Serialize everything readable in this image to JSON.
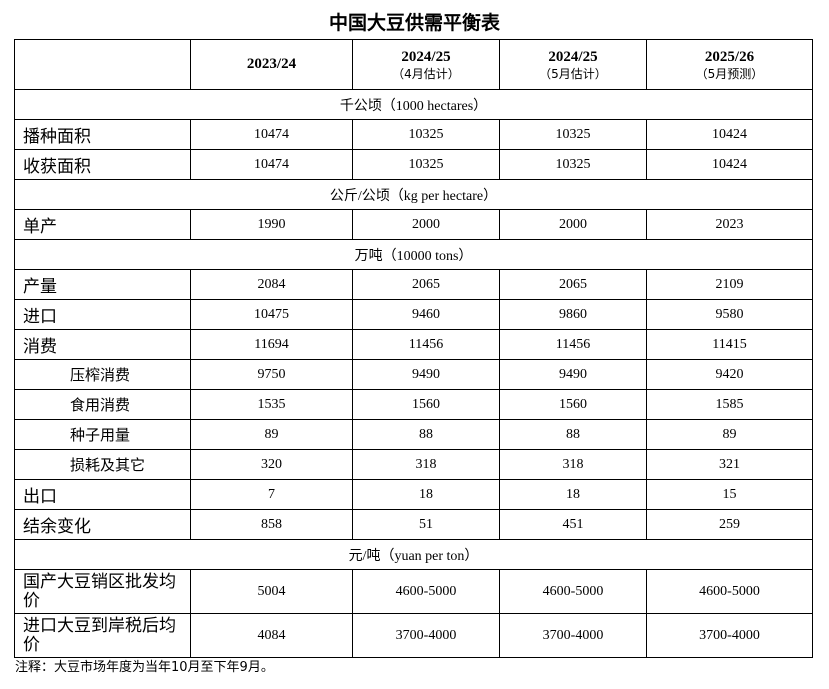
{
  "title": "中国大豆供需平衡表",
  "columns": [
    {
      "year": "2023/24",
      "sub": ""
    },
    {
      "year": "2024/25",
      "sub": "（4月估计）"
    },
    {
      "year": "2024/25",
      "sub": "（5月估计）"
    },
    {
      "year": "2025/26",
      "sub": "（5月预测）"
    }
  ],
  "sections": {
    "area": "千公顷（1000 hectares）",
    "yield": "公斤/公顷（kg per hectare）",
    "volume": "万吨（10000 tons）",
    "price": "元/吨（yuan per ton）"
  },
  "rows": {
    "planted": {
      "label": "播种面积",
      "values": [
        "10474",
        "10325",
        "10325",
        "10424"
      ]
    },
    "harvested": {
      "label": "收获面积",
      "values": [
        "10474",
        "10325",
        "10325",
        "10424"
      ]
    },
    "yield": {
      "label": "单产",
      "values": [
        "1990",
        "2000",
        "2000",
        "2023"
      ]
    },
    "output": {
      "label": "产量",
      "values": [
        "2084",
        "2065",
        "2065",
        "2109"
      ]
    },
    "imports": {
      "label": "进口",
      "values": [
        "10475",
        "9460",
        "9860",
        "9580"
      ]
    },
    "consumption": {
      "label": "消费",
      "values": [
        "11694",
        "11456",
        "11456",
        "11415"
      ]
    },
    "crush": {
      "label": "压榨消费",
      "values": [
        "9750",
        "9490",
        "9490",
        "9420"
      ]
    },
    "food": {
      "label": "食用消费",
      "values": [
        "1535",
        "1560",
        "1560",
        "1585"
      ]
    },
    "seed": {
      "label": "种子用量",
      "values": [
        "89",
        "88",
        "88",
        "89"
      ]
    },
    "loss": {
      "label": "损耗及其它",
      "values": [
        "320",
        "318",
        "318",
        "321"
      ]
    },
    "exports": {
      "label": "出口",
      "values": [
        "7",
        "18",
        "18",
        "15"
      ]
    },
    "balance": {
      "label": "结余变化",
      "values": [
        "858",
        "51",
        "451",
        "259"
      ]
    },
    "domestic_price": {
      "label": "国产大豆销区批发均价",
      "values": [
        "5004",
        "4600-5000",
        "4600-5000",
        "4600-5000"
      ]
    },
    "import_price": {
      "label": "进口大豆到岸税后均价",
      "values": [
        "4084",
        "3700-4000",
        "3700-4000",
        "3700-4000"
      ]
    }
  },
  "note": "注释：大豆市场年度为当年10月至下年9月。"
}
